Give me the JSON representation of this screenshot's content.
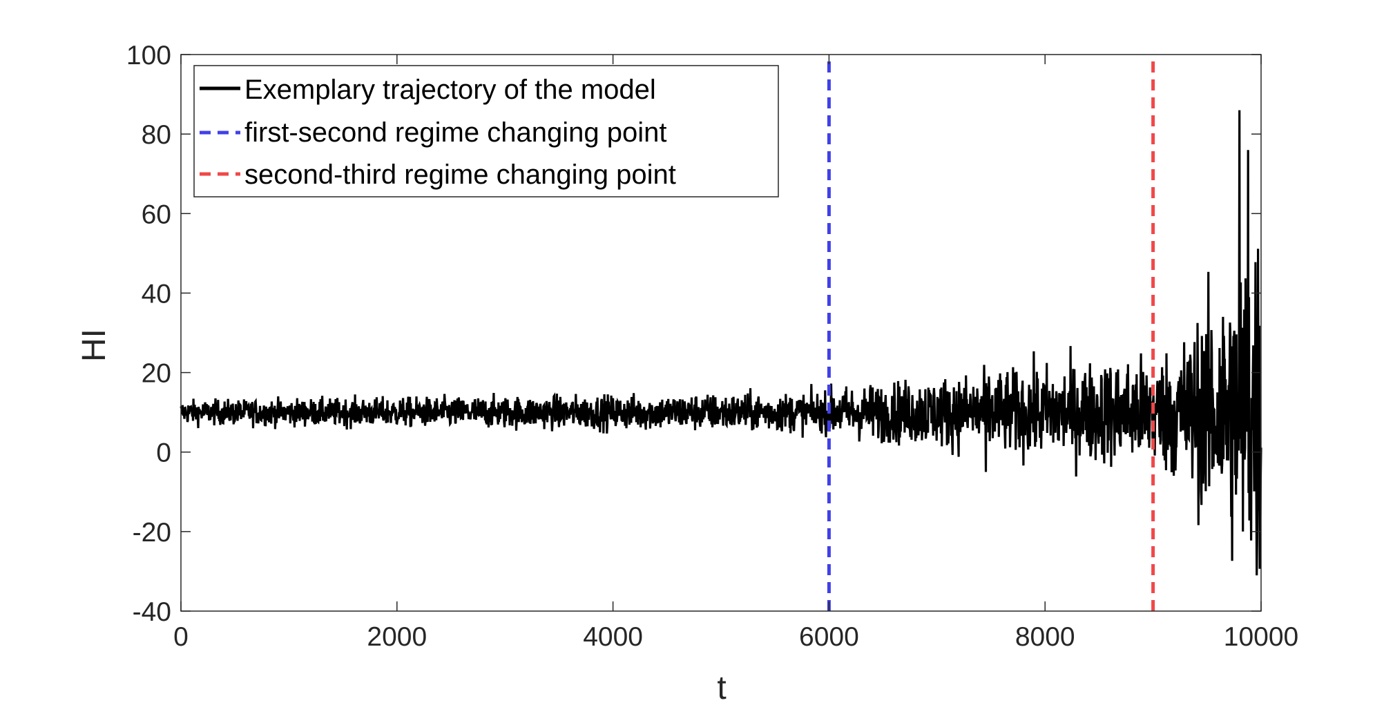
{
  "chart_data": {
    "type": "line",
    "title": "",
    "xlabel": "t",
    "ylabel": "HI",
    "xlim": [
      0,
      10000
    ],
    "ylim": [
      -40,
      100
    ],
    "xticks": [
      0,
      2000,
      4000,
      6000,
      8000,
      10000
    ],
    "yticks": [
      -40,
      -20,
      0,
      20,
      40,
      60,
      80,
      100
    ],
    "xtick_labels": [
      "0",
      "2000",
      "4000",
      "6000",
      "8000",
      "10000"
    ],
    "ytick_labels": [
      "-40",
      "-20",
      "0",
      "20",
      "40",
      "60",
      "80",
      "100"
    ],
    "grid": false,
    "box": true,
    "legend_position": "top-left",
    "series": [
      {
        "name": "Exemplary trajectory of the model",
        "style": "solid",
        "color": "#000000",
        "mean": 10,
        "regimes": [
          {
            "t_start": 0,
            "t_end": 6000,
            "spread_start": 1.5,
            "spread_end": 2.5
          },
          {
            "t_start": 6000,
            "t_end": 9000,
            "spread_start": 3.0,
            "spread_end": 7.0
          },
          {
            "t_start": 9000,
            "t_end": 10000,
            "spread_start": 7.0,
            "spread_end": 25.0
          }
        ],
        "notable_points": [
          {
            "t": 9800,
            "value": 86
          },
          {
            "t": 9960,
            "value": -31
          },
          {
            "t": 9880,
            "value": 76
          },
          {
            "t": 7450,
            "value": -5
          }
        ]
      },
      {
        "name": "first-second regime changing point",
        "style": "dashed",
        "color": "#4040e8",
        "x": 6000
      },
      {
        "name": "second-third regime changing point",
        "style": "dashed",
        "color": "#f04848",
        "x": 9000
      }
    ]
  }
}
